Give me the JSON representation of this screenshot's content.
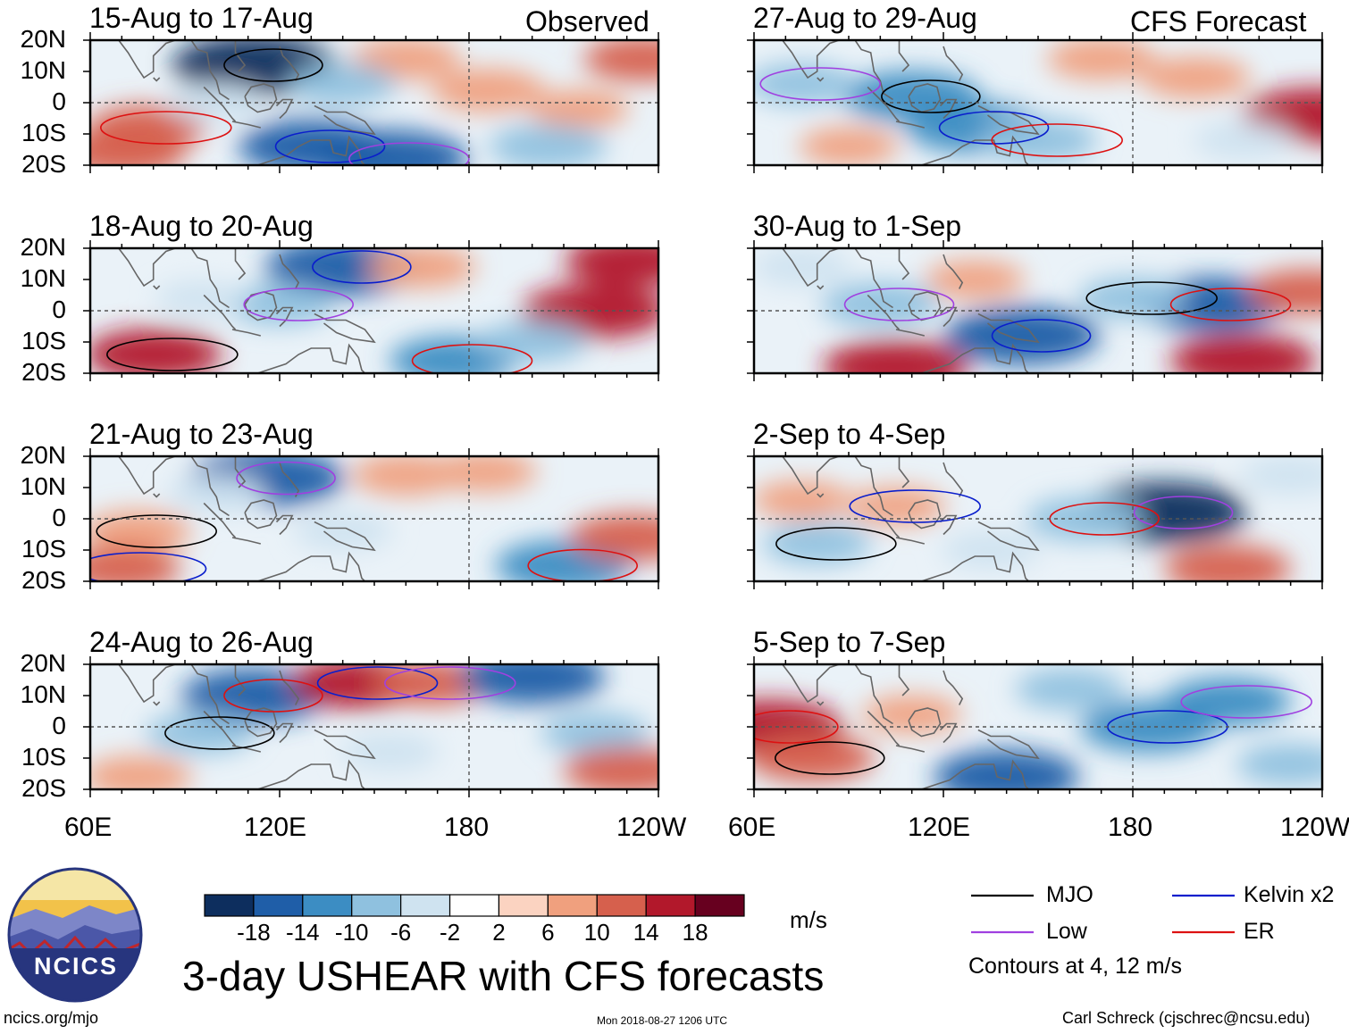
{
  "figure": {
    "title": "3-day USHEAR with CFS forecasts",
    "left_column_label": "Observed",
    "right_column_label": "CFS Forecast",
    "site": "ncics.org/mjo",
    "timestamp": "Mon 2018-08-27 1206 UTC",
    "author": "Carl Schreck (cjschrec@ncsu.edu)",
    "logo_text": "NCICS",
    "units": "m/s",
    "contour_note": "Contours at 4, 12 m/s"
  },
  "chart_data": {
    "type": "heatmap",
    "variable": "3-day USHEAR anomaly",
    "xlabel": "",
    "ylabel": "",
    "x_ticks": [
      "60E",
      "120E",
      "180",
      "120W"
    ],
    "y_ticks": [
      "20N",
      "10N",
      "0",
      "10S",
      "20S"
    ],
    "xlim": [
      60,
      240
    ],
    "ylim": [
      -20,
      20
    ],
    "panels": [
      {
        "title": "15-Aug to 17-Aug",
        "source": "Observed",
        "blobs": [
          {
            "lon": 112,
            "lat": 12,
            "value": -20
          },
          {
            "lon": 130,
            "lat": -14,
            "value": -16
          },
          {
            "lon": 155,
            "lat": -18,
            "value": -18
          },
          {
            "lon": 78,
            "lat": -8,
            "value": 10
          },
          {
            "lon": 70,
            "lat": -16,
            "value": 12
          },
          {
            "lon": 160,
            "lat": 14,
            "value": 8
          },
          {
            "lon": 186,
            "lat": 4,
            "value": 9
          },
          {
            "lon": 215,
            "lat": -2,
            "value": 6
          },
          {
            "lon": 235,
            "lat": 14,
            "value": 10
          },
          {
            "lon": 205,
            "lat": -14,
            "value": -10
          },
          {
            "lon": 100,
            "lat": 0,
            "value": -6
          },
          {
            "lon": 140,
            "lat": 6,
            "value": -8
          }
        ]
      },
      {
        "title": "18-Aug to 20-Aug",
        "source": "Observed",
        "blobs": [
          {
            "lon": 140,
            "lat": 14,
            "value": -18
          },
          {
            "lon": 120,
            "lat": 2,
            "value": -8
          },
          {
            "lon": 175,
            "lat": -16,
            "value": -12
          },
          {
            "lon": 80,
            "lat": -14,
            "value": 14
          },
          {
            "lon": 220,
            "lat": 0,
            "value": 16
          },
          {
            "lon": 232,
            "lat": 16,
            "value": 14
          },
          {
            "lon": 165,
            "lat": 14,
            "value": 8
          },
          {
            "lon": 95,
            "lat": 4,
            "value": -4
          },
          {
            "lon": 200,
            "lat": -10,
            "value": -8
          }
        ]
      },
      {
        "title": "21-Aug to 23-Aug",
        "source": "Observed",
        "blobs": [
          {
            "lon": 116,
            "lat": 13,
            "value": -18
          },
          {
            "lon": 210,
            "lat": -15,
            "value": -14
          },
          {
            "lon": 75,
            "lat": -4,
            "value": 8
          },
          {
            "lon": 70,
            "lat": -16,
            "value": 10
          },
          {
            "lon": 160,
            "lat": 14,
            "value": 8
          },
          {
            "lon": 185,
            "lat": 15,
            "value": 7
          },
          {
            "lon": 232,
            "lat": -6,
            "value": 12
          },
          {
            "lon": 140,
            "lat": -4,
            "value": -6
          },
          {
            "lon": 100,
            "lat": 8,
            "value": -6
          }
        ]
      },
      {
        "title": "24-Aug to 26-Aug",
        "source": "Observed",
        "blobs": [
          {
            "lon": 112,
            "lat": 10,
            "value": -16
          },
          {
            "lon": 95,
            "lat": -2,
            "value": -8
          },
          {
            "lon": 145,
            "lat": 14,
            "value": 14
          },
          {
            "lon": 168,
            "lat": 14,
            "value": 10
          },
          {
            "lon": 200,
            "lat": 16,
            "value": -16
          },
          {
            "lon": 220,
            "lat": -2,
            "value": -8
          },
          {
            "lon": 75,
            "lat": -16,
            "value": 8
          },
          {
            "lon": 230,
            "lat": -14,
            "value": 12
          },
          {
            "lon": 155,
            "lat": -8,
            "value": -6
          }
        ]
      },
      {
        "title": "27-Aug to 29-Aug",
        "source": "CFS Forecast",
        "blobs": [
          {
            "lon": 110,
            "lat": 2,
            "value": -14
          },
          {
            "lon": 130,
            "lat": -8,
            "value": -14
          },
          {
            "lon": 75,
            "lat": 6,
            "value": -8
          },
          {
            "lon": 150,
            "lat": -12,
            "value": -10
          },
          {
            "lon": 200,
            "lat": 8,
            "value": 8
          },
          {
            "lon": 238,
            "lat": -4,
            "value": 16
          },
          {
            "lon": 170,
            "lat": 14,
            "value": 8
          },
          {
            "lon": 215,
            "lat": -12,
            "value": -6
          },
          {
            "lon": 90,
            "lat": -14,
            "value": 6
          }
        ]
      },
      {
        "title": "30-Aug to 1-Sep",
        "source": "CFS Forecast",
        "blobs": [
          {
            "lon": 145,
            "lat": -8,
            "value": -18
          },
          {
            "lon": 100,
            "lat": 2,
            "value": -10
          },
          {
            "lon": 205,
            "lat": 2,
            "value": -16
          },
          {
            "lon": 180,
            "lat": 4,
            "value": -8
          },
          {
            "lon": 105,
            "lat": -18,
            "value": 16
          },
          {
            "lon": 215,
            "lat": -16,
            "value": 16
          },
          {
            "lon": 235,
            "lat": 6,
            "value": 10
          },
          {
            "lon": 75,
            "lat": 14,
            "value": -6
          },
          {
            "lon": 130,
            "lat": 10,
            "value": 6
          }
        ]
      },
      {
        "title": "2-Sep to 4-Sep",
        "source": "CFS Forecast",
        "blobs": [
          {
            "lon": 190,
            "lat": 2,
            "value": -20
          },
          {
            "lon": 165,
            "lat": 0,
            "value": -10
          },
          {
            "lon": 80,
            "lat": -8,
            "value": -8
          },
          {
            "lon": 105,
            "lat": 4,
            "value": 6
          },
          {
            "lon": 210,
            "lat": -16,
            "value": 12
          },
          {
            "lon": 75,
            "lat": 6,
            "value": 6
          },
          {
            "lon": 135,
            "lat": -10,
            "value": -6
          },
          {
            "lon": 230,
            "lat": 14,
            "value": -6
          }
        ]
      },
      {
        "title": "5-Sep to 7-Sep",
        "source": "CFS Forecast",
        "blobs": [
          {
            "lon": 65,
            "lat": 0,
            "value": 16
          },
          {
            "lon": 78,
            "lat": -10,
            "value": 12
          },
          {
            "lon": 185,
            "lat": 0,
            "value": -14
          },
          {
            "lon": 210,
            "lat": 8,
            "value": -12
          },
          {
            "lon": 140,
            "lat": -16,
            "value": -16
          },
          {
            "lon": 110,
            "lat": 4,
            "value": 6
          },
          {
            "lon": 160,
            "lat": 12,
            "value": -8
          },
          {
            "lon": 230,
            "lat": -12,
            "value": -8
          }
        ]
      }
    ],
    "colorbar": {
      "units": "m/s",
      "tick_labels": [
        "-18",
        "-14",
        "-10",
        "-6",
        "-2",
        "2",
        "6",
        "10",
        "14",
        "18"
      ],
      "levels": [
        -18,
        -14,
        -10,
        -6,
        -2,
        2,
        6,
        10,
        14,
        18
      ],
      "colors": [
        "#0d2e5e",
        "#1f5ea8",
        "#3c8dc3",
        "#8fc1df",
        "#cfe3f0",
        "#ffffff",
        "#fbd3c1",
        "#f0a07e",
        "#d6604d",
        "#b2182b",
        "#67001f"
      ]
    },
    "legend": [
      {
        "label": "MJO",
        "color": "#000000"
      },
      {
        "label": "Kelvin x2",
        "color": "#0a1ecc"
      },
      {
        "label": "Low",
        "color": "#a040e0"
      },
      {
        "label": "ER",
        "color": "#dd1111"
      }
    ]
  }
}
